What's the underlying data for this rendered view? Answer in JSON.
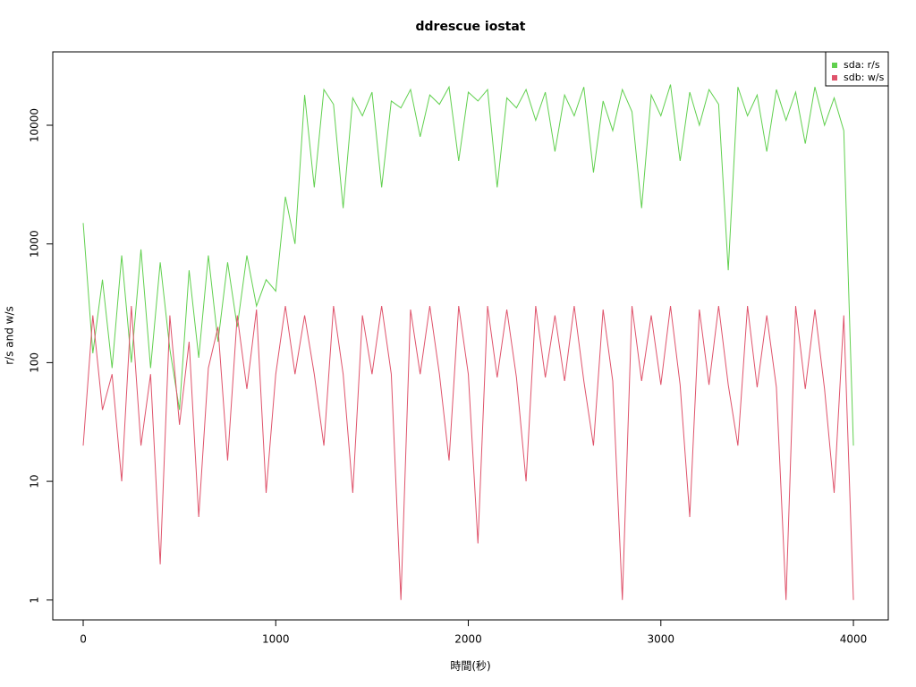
{
  "chart_data": {
    "type": "line",
    "title": "ddrescue iostat",
    "x_label": "時間(秒)",
    "y_label": "r/s and w/s",
    "x": [
      0,
      50,
      100,
      150,
      200,
      250,
      300,
      350,
      400,
      450,
      500,
      550,
      600,
      650,
      700,
      750,
      800,
      850,
      900,
      950,
      1000,
      1050,
      1100,
      1150,
      1200,
      1250,
      1300,
      1350,
      1400,
      1450,
      1500,
      1550,
      1600,
      1650,
      1700,
      1750,
      1800,
      1850,
      1900,
      1950,
      2000,
      2050,
      2100,
      2150,
      2200,
      2250,
      2300,
      2350,
      2400,
      2450,
      2500,
      2550,
      2600,
      2650,
      2700,
      2750,
      2800,
      2850,
      2900,
      2950,
      3000,
      3050,
      3100,
      3150,
      3200,
      3250,
      3300,
      3350,
      3400,
      3450,
      3500,
      3550,
      3600,
      3650,
      3700,
      3750,
      3800,
      3850,
      3900,
      3950,
      4000
    ],
    "series": [
      {
        "name": "sda: r/s",
        "color": "#61D04F",
        "values": [
          1500,
          120,
          500,
          90,
          800,
          100,
          900,
          90,
          700,
          130,
          40,
          600,
          110,
          800,
          150,
          700,
          200,
          800,
          300,
          500,
          400,
          2500,
          1000,
          18000,
          3000,
          20000,
          15000,
          2000,
          17000,
          12000,
          19000,
          3000,
          16000,
          14000,
          20000,
          8000,
          18000,
          15000,
          21000,
          5000,
          19000,
          16000,
          20000,
          3000,
          17000,
          14000,
          20000,
          11000,
          19000,
          6000,
          18000,
          12000,
          21000,
          4000,
          16000,
          9000,
          20000,
          13000,
          2000,
          18000,
          12000,
          22000,
          5000,
          19000,
          10000,
          20000,
          15000,
          600,
          21000,
          12000,
          18000,
          6000,
          20000,
          11000,
          19000,
          7000,
          21000,
          10000,
          17000,
          9000,
          20
        ]
      },
      {
        "name": "sdb: w/s",
        "color": "#DF536B",
        "values": [
          20,
          250,
          40,
          80,
          10,
          300,
          20,
          80,
          2,
          250,
          30,
          150,
          5,
          90,
          200,
          15,
          250,
          60,
          280,
          8,
          80,
          300,
          80,
          250,
          80,
          20,
          300,
          80,
          8,
          250,
          80,
          300,
          80,
          1,
          280,
          80,
          300,
          80,
          15,
          300,
          80,
          3,
          300,
          75,
          280,
          75,
          10,
          300,
          75,
          250,
          70,
          300,
          70,
          20,
          280,
          70,
          1,
          300,
          70,
          250,
          65,
          300,
          65,
          5,
          280,
          65,
          300,
          65,
          20,
          300,
          62,
          250,
          62,
          1,
          300,
          60,
          280,
          60,
          8,
          250,
          1
        ]
      }
    ],
    "xlim": [
      -158,
      4181
    ],
    "ylim": [
      0.68,
      41500
    ],
    "xticks": [
      0,
      1000,
      2000,
      3000,
      4000
    ],
    "yticks": [
      1,
      10,
      100,
      1000,
      10000
    ],
    "log_y": true,
    "legend": "topright"
  }
}
